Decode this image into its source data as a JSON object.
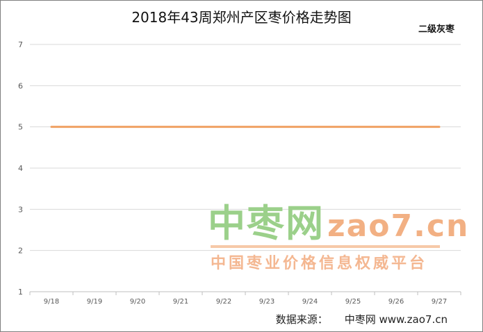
{
  "chart_data": {
    "type": "line",
    "title": "2018年43周郑州产区枣价格走势图",
    "categories": [
      "9/18",
      "9/19",
      "9/20",
      "9/21",
      "9/22",
      "9/23",
      "9/24",
      "9/25",
      "9/26",
      "9/27"
    ],
    "series": [
      {
        "name": "二级灰枣",
        "values": [
          5,
          5,
          5,
          5,
          5,
          5,
          5,
          5,
          5,
          5
        ],
        "color": "#f0a163"
      }
    ],
    "ylim": [
      1,
      7
    ],
    "yticks": [
      1,
      2,
      3,
      4,
      5,
      6,
      7
    ],
    "grid": true,
    "legend_position": "top-right"
  },
  "watermark": {
    "logo": "中枣网",
    "site": "zao7.cn",
    "tagline": "中国枣业价格信息权威平台"
  },
  "source": {
    "label": "数据来源：",
    "name": "中枣网 www.zao7.cn"
  }
}
